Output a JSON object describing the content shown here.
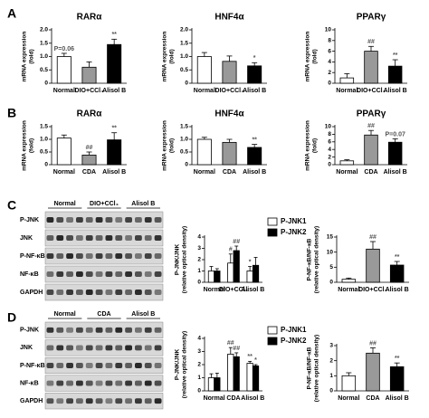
{
  "panel_labels": [
    "A",
    "B",
    "C",
    "D"
  ],
  "blots": [
    {
      "groups": [
        "Normal",
        "DIO+CCl₄",
        "Alisol B"
      ],
      "rows": [
        "P-JNK",
        "JNK",
        "P-NF-κB",
        "NF-κB",
        "GAPDH"
      ]
    },
    {
      "groups": [
        "Normal",
        "CDA",
        "Alisol B"
      ],
      "rows": [
        "P-JNK",
        "JNK",
        "P-NF-κB",
        "NF-κB",
        "GAPDH"
      ]
    }
  ],
  "chart_data": [
    {
      "type": "bar",
      "title": "RARα",
      "ylabel": [
        "mRNA expression",
        "(fold)"
      ],
      "categories": [
        "Normal",
        "DIO+CCl₄",
        "Alisol B"
      ],
      "values": [
        1.0,
        0.6,
        1.45
      ],
      "errors": [
        0.12,
        0.2,
        0.2
      ],
      "annotations": [
        "P=0.06",
        null,
        "**"
      ],
      "colors": [
        "#ffffff",
        "#999999",
        "#000000"
      ],
      "ylim": [
        0,
        2
      ],
      "yticks": [
        0,
        0.5,
        {
          "value": 1,
          "label": "1.0"
        },
        1.5,
        {
          "value": 2,
          "label": "2.0"
        }
      ]
    },
    {
      "type": "bar",
      "title": "HNF4α",
      "ylabel": [
        "mRNA expression",
        "(fold)"
      ],
      "categories": [
        "Normal",
        "DIO+CCl₄",
        "Alisol B"
      ],
      "values": [
        1.0,
        0.82,
        0.65
      ],
      "errors": [
        0.15,
        0.2,
        0.12
      ],
      "annotations": [
        null,
        null,
        "*"
      ],
      "colors": [
        "#ffffff",
        "#999999",
        "#000000"
      ],
      "ylim": [
        0,
        2
      ],
      "yticks": [
        0,
        0.5,
        {
          "value": 1,
          "label": "1.0"
        },
        1.5,
        {
          "value": 2,
          "label": "2.0"
        }
      ]
    },
    {
      "type": "bar",
      "title": "PPARγ",
      "ylabel": [
        "mRNA expression",
        "(fold)"
      ],
      "categories": [
        "Normal",
        "DIO+CCl₄",
        "Alisol B"
      ],
      "values": [
        1.0,
        6.0,
        3.2
      ],
      "errors": [
        0.8,
        0.9,
        1.2
      ],
      "annotations": [
        null,
        "##",
        "**"
      ],
      "colors": [
        "#ffffff",
        "#999999",
        "#000000"
      ],
      "ylim": [
        0,
        10
      ],
      "yticks": [
        0,
        2,
        4,
        6,
        8,
        10
      ]
    },
    {
      "type": "bar",
      "title": "RARα",
      "ylabel": [
        "mRNA expression",
        "(fold)"
      ],
      "categories": [
        "Normal",
        "CDA",
        "Alisol B"
      ],
      "values": [
        1.05,
        0.38,
        0.98
      ],
      "errors": [
        0.12,
        0.12,
        0.28
      ],
      "annotations": [
        null,
        "##",
        "**"
      ],
      "colors": [
        "#ffffff",
        "#999999",
        "#000000"
      ],
      "ylim": [
        0,
        1.5
      ],
      "yticks": [
        0,
        0.5,
        {
          "value": 1,
          "label": "1.0"
        },
        1.5
      ]
    },
    {
      "type": "bar",
      "title": "HNF4α",
      "ylabel": [
        "mRNA expression",
        "(fold)"
      ],
      "categories": [
        "Normal",
        "CDA",
        "Alisol B"
      ],
      "values": [
        1.0,
        0.88,
        0.68
      ],
      "errors": [
        0.08,
        0.12,
        0.12
      ],
      "annotations": [
        null,
        null,
        "**"
      ],
      "colors": [
        "#ffffff",
        "#999999",
        "#000000"
      ],
      "ylim": [
        0,
        1.5
      ],
      "yticks": [
        0,
        0.5,
        {
          "value": 1,
          "label": "1.0"
        },
        1.5
      ]
    },
    {
      "type": "bar",
      "title": "PPARγ",
      "ylabel": [
        "mRNA expression",
        "(fold)"
      ],
      "categories": [
        "Normal",
        "CDA",
        "Alisol B"
      ],
      "values": [
        1.0,
        7.8,
        5.9
      ],
      "errors": [
        0.3,
        1.2,
        0.9
      ],
      "annotations": [
        null,
        "##",
        "P=0.07"
      ],
      "colors": [
        "#ffffff",
        "#999999",
        "#000000"
      ],
      "ylim": [
        0,
        10
      ],
      "yticks": [
        0,
        2,
        4,
        6,
        8,
        10
      ]
    },
    {
      "type": "grouped_bar",
      "ylabel": [
        "P-JNK/JNK",
        "(relative optical density)"
      ],
      "categories": [
        "Normal",
        "DIO+CCl₄",
        "Alisol B"
      ],
      "series": [
        {
          "name": "P-JNK1",
          "color": "#ffffff",
          "values": [
            1.0,
            1.7,
            1.0
          ],
          "errors": [
            0.4,
            0.8,
            0.4
          ],
          "annotations": [
            null,
            "#",
            "*"
          ]
        },
        {
          "name": "P-JNK2",
          "color": "#000000",
          "values": [
            1.0,
            2.8,
            1.5
          ],
          "errors": [
            0.2,
            0.4,
            0.7
          ],
          "annotations": [
            null,
            "##",
            null
          ]
        }
      ],
      "ylim": [
        0,
        4
      ],
      "yticks": [
        0,
        1,
        2,
        3,
        4
      ]
    },
    {
      "type": "bar",
      "ylabel": [
        "P-NF-κB/NF-κB",
        "(relative optical density)"
      ],
      "categories": [
        "Normal",
        "DIO+CCl₄",
        "Alisol B"
      ],
      "values": [
        1.0,
        11.0,
        5.7
      ],
      "errors": [
        0.4,
        2.5,
        1.2
      ],
      "annotations": [
        null,
        "##",
        "**"
      ],
      "colors": [
        "#ffffff",
        "#999999",
        "#000000"
      ],
      "ylim": [
        0,
        15
      ],
      "yticks": [
        0,
        5,
        10,
        15
      ]
    },
    {
      "type": "grouped_bar",
      "ylabel": [
        "P-JNK/JNK",
        "(relative optical density)"
      ],
      "categories": [
        "Normal",
        "CDA",
        "Alisol B"
      ],
      "series": [
        {
          "name": "P-JNK1",
          "color": "#ffffff",
          "values": [
            1.0,
            2.8,
            2.1
          ],
          "errors": [
            0.3,
            0.5,
            0.15
          ],
          "annotations": [
            null,
            "##",
            "**"
          ]
        },
        {
          "name": "P-JNK2",
          "color": "#000000",
          "values": [
            1.0,
            2.6,
            1.9
          ],
          "errors": [
            0.35,
            0.3,
            0.1
          ],
          "annotations": [
            null,
            "##",
            "*"
          ]
        }
      ],
      "ylim": [
        0,
        4
      ],
      "yticks": [
        0,
        1,
        2,
        3,
        4
      ]
    },
    {
      "type": "bar",
      "ylabel": [
        "P-NF-κB/NF-κB",
        "(relative optical density)"
      ],
      "categories": [
        "Normal",
        "CDA",
        "Alisol B"
      ],
      "values": [
        1.0,
        2.5,
        1.6
      ],
      "errors": [
        0.2,
        0.35,
        0.25
      ],
      "annotations": [
        null,
        "##",
        "**"
      ],
      "colors": [
        "#ffffff",
        "#999999",
        "#000000"
      ],
      "ylim": [
        0,
        3
      ],
      "yticks": [
        0,
        1,
        2,
        3
      ]
    }
  ]
}
